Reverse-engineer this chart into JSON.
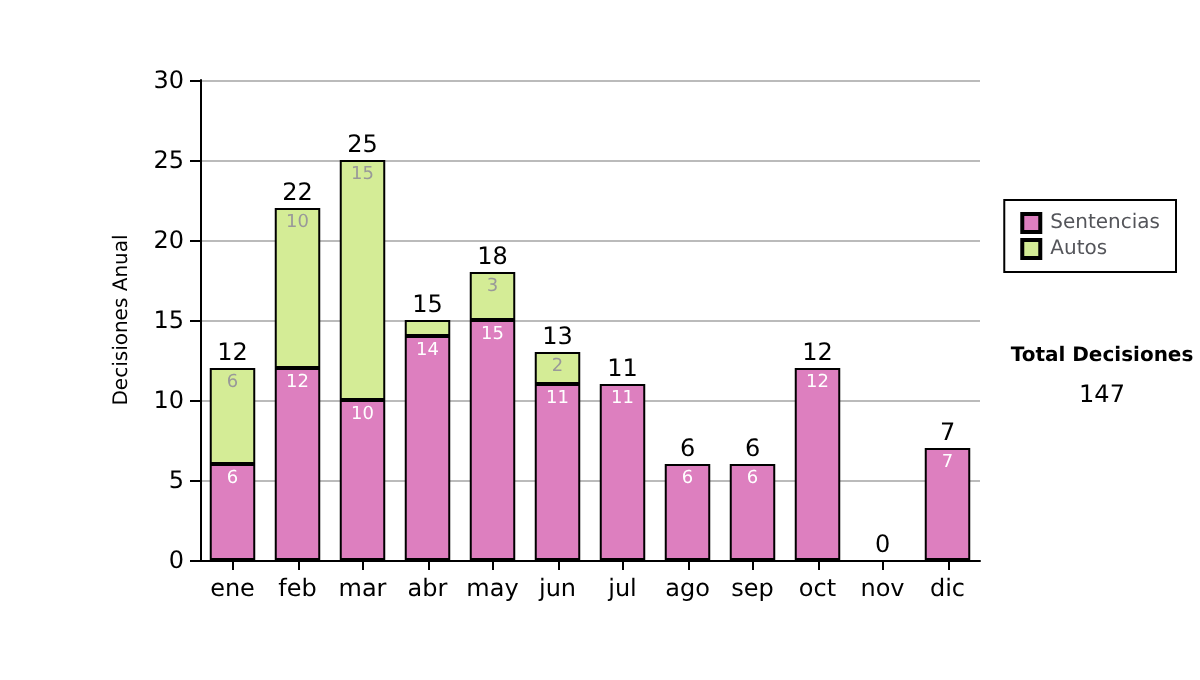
{
  "chart_data": {
    "type": "bar",
    "stacked": true,
    "ylabel": "Decisiones Anual",
    "categories": [
      "ene",
      "feb",
      "mar",
      "abr",
      "may",
      "jun",
      "jul",
      "ago",
      "sep",
      "oct",
      "nov",
      "dic"
    ],
    "series": [
      {
        "name": "Sentencias",
        "color": "#dd7fbf",
        "values": [
          6,
          12,
          10,
          14,
          15,
          11,
          11,
          6,
          6,
          12,
          0,
          7
        ],
        "value_labels": [
          "6",
          "12",
          "10",
          "14",
          "15",
          "11",
          "11",
          "6",
          "6",
          "12",
          null,
          "7"
        ]
      },
      {
        "name": "Autos",
        "color": "#d4ec96",
        "values": [
          6,
          10,
          15,
          1,
          3,
          2,
          0,
          0,
          0,
          0,
          0,
          0
        ],
        "value_labels": [
          "6",
          "10",
          "15",
          null,
          "3",
          "2",
          null,
          null,
          null,
          null,
          null,
          null
        ]
      }
    ],
    "totals": [
      "12",
      "22",
      "25",
      "15",
      "18",
      "13",
      "11",
      "6",
      "6",
      "12",
      "0",
      "7"
    ],
    "ylim": [
      0,
      30
    ],
    "yticks": [
      0,
      5,
      10,
      15,
      20,
      25,
      30
    ],
    "grid": "y",
    "legend": "right",
    "annotations": [
      "Total Decisiones",
      "147"
    ]
  }
}
